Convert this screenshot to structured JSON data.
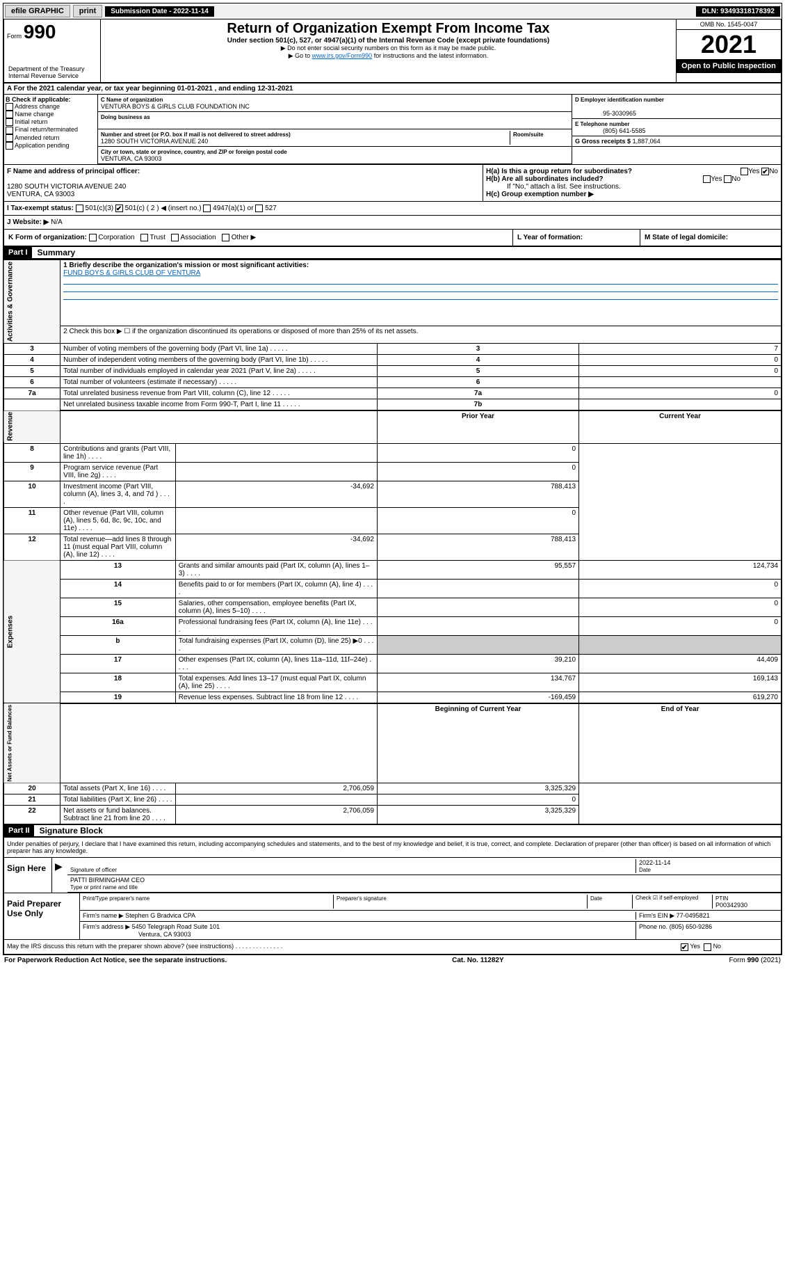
{
  "topbar": {
    "efile": "efile GRAPHIC",
    "print": "print",
    "submission_label": "Submission Date - 2022-11-14",
    "dln_label": "DLN: 93493318178392"
  },
  "header": {
    "form_prefix": "Form",
    "form_num": "990",
    "dept": "Department of the Treasury\nInternal Revenue Service",
    "title": "Return of Organization Exempt From Income Tax",
    "sub": "Under section 501(c), 527, or 4947(a)(1) of the Internal Revenue Code (except private foundations)",
    "note1": "▶ Do not enter social security numbers on this form as it may be made public.",
    "note2_pre": "▶ Go to ",
    "note2_link": "www.irs.gov/Form990",
    "note2_post": " for instructions and the latest information.",
    "omb": "OMB No. 1545-0047",
    "year": "2021",
    "inspection": "Open to Public Inspection"
  },
  "sectionA": {
    "tax_year": "A For the 2021 calendar year, or tax year beginning 01-01-2021   , and ending 12-31-2021",
    "b_label": "B Check if applicable:",
    "b_items": [
      "Address change",
      "Name change",
      "Initial return",
      "Final return/terminated",
      "Amended return",
      "Application pending"
    ],
    "c_name_label": "C Name of organization",
    "c_name": "VENTURA BOYS & GIRLS CLUB FOUNDATION INC",
    "dba_label": "Doing business as",
    "street_label": "Number and street (or P.O. box if mail is not delivered to street address)",
    "room_label": "Room/suite",
    "street": "1280 SOUTH VICTORIA AVENUE 240",
    "city_label": "City or town, state or province, country, and ZIP or foreign postal code",
    "city": "VENTURA, CA  93003",
    "d_label": "D Employer identification number",
    "d_val": "95-3030965",
    "e_label": "E Telephone number",
    "e_val": "(805) 641-5585",
    "g_label": "G Gross receipts $",
    "g_val": "1,887,064",
    "f_label": "F Name and address of principal officer:",
    "f_val": "1280 SOUTH VICTORIA AVENUE 240\nVENTURA, CA  93003",
    "ha_label": "H(a)  Is this a group return for subordinates?",
    "ha_yes": "Yes",
    "ha_no": "No",
    "hb_label": "H(b)  Are all subordinates included?",
    "hb_note": "If \"No,\" attach a list. See instructions.",
    "hc_label": "H(c)  Group exemption number ▶",
    "i_label": "I   Tax-exempt status:",
    "i_501c3": "501(c)(3)",
    "i_501c": "501(c) ( 2 ) ◀ (insert no.)",
    "i_4947": "4947(a)(1) or",
    "i_527": "527",
    "j_label": "J   Website: ▶",
    "j_val": "N/A",
    "k_label": "K Form of organization:",
    "k_items": [
      "Corporation",
      "Trust",
      "Association",
      "Other ▶"
    ],
    "l_label": "L Year of formation:",
    "m_label": "M State of legal domicile:"
  },
  "part1": {
    "header": "Part I",
    "title": "Summary",
    "line1_label": "1   Briefly describe the organization's mission or most significant activities:",
    "line1_val": "FUND BOYS & GIRLS CLUB OF VENTURA",
    "line2": "2   Check this box ▶ ☐  if the organization discontinued its operations or disposed of more than 25% of its net assets.",
    "rows_gov": [
      {
        "n": "3",
        "label": "Number of voting members of the governing body (Part VI, line 1a)",
        "box": "3",
        "val": "7"
      },
      {
        "n": "4",
        "label": "Number of independent voting members of the governing body (Part VI, line 1b)",
        "box": "4",
        "val": "0"
      },
      {
        "n": "5",
        "label": "Total number of individuals employed in calendar year 2021 (Part V, line 2a)",
        "box": "5",
        "val": "0"
      },
      {
        "n": "6",
        "label": "Total number of volunteers (estimate if necessary)",
        "box": "6",
        "val": ""
      },
      {
        "n": "7a",
        "label": "Total unrelated business revenue from Part VIII, column (C), line 12",
        "box": "7a",
        "val": "0"
      },
      {
        "n": "",
        "label": "Net unrelated business taxable income from Form 990-T, Part I, line 11",
        "box": "7b",
        "val": ""
      }
    ],
    "col_prior": "Prior Year",
    "col_current": "Current Year",
    "rows_rev": [
      {
        "n": "8",
        "label": "Contributions and grants (Part VIII, line 1h)",
        "prior": "",
        "cur": "0"
      },
      {
        "n": "9",
        "label": "Program service revenue (Part VIII, line 2g)",
        "prior": "",
        "cur": "0"
      },
      {
        "n": "10",
        "label": "Investment income (Part VIII, column (A), lines 3, 4, and 7d )",
        "prior": "-34,692",
        "cur": "788,413"
      },
      {
        "n": "11",
        "label": "Other revenue (Part VIII, column (A), lines 5, 6d, 8c, 9c, 10c, and 11e)",
        "prior": "",
        "cur": "0"
      },
      {
        "n": "12",
        "label": "Total revenue—add lines 8 through 11 (must equal Part VIII, column (A), line 12)",
        "prior": "-34,692",
        "cur": "788,413"
      }
    ],
    "rows_exp": [
      {
        "n": "13",
        "label": "Grants and similar amounts paid (Part IX, column (A), lines 1–3)",
        "prior": "95,557",
        "cur": "124,734"
      },
      {
        "n": "14",
        "label": "Benefits paid to or for members (Part IX, column (A), line 4)",
        "prior": "",
        "cur": "0"
      },
      {
        "n": "15",
        "label": "Salaries, other compensation, employee benefits (Part IX, column (A), lines 5–10)",
        "prior": "",
        "cur": "0"
      },
      {
        "n": "16a",
        "label": "Professional fundraising fees (Part IX, column (A), line 11e)",
        "prior": "",
        "cur": "0"
      },
      {
        "n": "b",
        "label": "Total fundraising expenses (Part IX, column (D), line 25) ▶0",
        "prior": "SHADE",
        "cur": "SHADE"
      },
      {
        "n": "17",
        "label": "Other expenses (Part IX, column (A), lines 11a–11d, 11f–24e)",
        "prior": "39,210",
        "cur": "44,409"
      },
      {
        "n": "18",
        "label": "Total expenses. Add lines 13–17 (must equal Part IX, column (A), line 25)",
        "prior": "134,767",
        "cur": "169,143"
      },
      {
        "n": "19",
        "label": "Revenue less expenses. Subtract line 18 from line 12",
        "prior": "-169,459",
        "cur": "619,270"
      }
    ],
    "col_begin": "Beginning of Current Year",
    "col_end": "End of Year",
    "rows_net": [
      {
        "n": "20",
        "label": "Total assets (Part X, line 16)",
        "prior": "2,706,059",
        "cur": "3,325,329"
      },
      {
        "n": "21",
        "label": "Total liabilities (Part X, line 26)",
        "prior": "",
        "cur": "0"
      },
      {
        "n": "22",
        "label": "Net assets or fund balances. Subtract line 21 from line 20",
        "prior": "2,706,059",
        "cur": "3,325,329"
      }
    ],
    "vlabels": {
      "gov": "Activities & Governance",
      "rev": "Revenue",
      "exp": "Expenses",
      "net": "Net Assets or Fund Balances"
    }
  },
  "part2": {
    "header": "Part II",
    "title": "Signature Block",
    "decl": "Under penalties of perjury, I declare that I have examined this return, including accompanying schedules and statements, and to the best of my knowledge and belief, it is true, correct, and complete. Declaration of preparer (other than officer) is based on all information of which preparer has any knowledge.",
    "sign_here": "Sign Here",
    "sig_officer": "Signature of officer",
    "sig_date_label": "Date",
    "sig_date": "2022-11-14",
    "officer_name": "PATTI BIRMINGHAM CEO",
    "type_name": "Type or print name and title",
    "paid": "Paid Preparer Use Only",
    "prep_name_label": "Print/Type preparer's name",
    "prep_sig_label": "Preparer's signature",
    "date_label": "Date",
    "check_self": "Check ☑ if self-employed",
    "ptin_label": "PTIN",
    "ptin": "P00342930",
    "firm_name_label": "Firm's name    ▶",
    "firm_name": "Stephen G Bradvica CPA",
    "firm_ein_label": "Firm's EIN ▶",
    "firm_ein": "77-0495821",
    "firm_addr_label": "Firm's address ▶",
    "firm_addr1": "5450 Telegraph Road Suite 101",
    "firm_addr2": "Ventura, CA  93003",
    "phone_label": "Phone no.",
    "phone": "(805) 650-9286",
    "irs_discuss": "May the IRS discuss this return with the preparer shown above? (see instructions)",
    "yes": "Yes",
    "no": "No"
  },
  "footer": {
    "paperwork": "For Paperwork Reduction Act Notice, see the separate instructions.",
    "cat": "Cat. No. 11282Y",
    "form": "Form 990 (2021)"
  }
}
